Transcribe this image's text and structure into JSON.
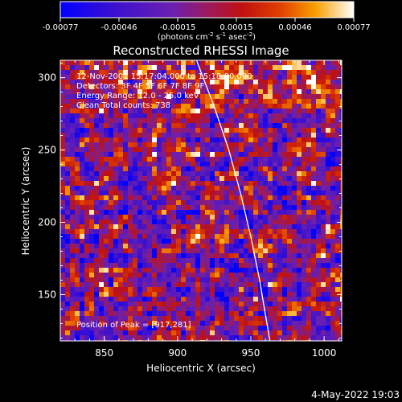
{
  "chart_data": {
    "type": "heatmap",
    "title": "Reconstructed RHESSI Image",
    "xlabel": "Heliocentric X (arcsec)",
    "ylabel": "Heliocentric Y (arcsec)",
    "xlim": [
      820,
      1012
    ],
    "ylim": [
      118,
      312
    ],
    "xticks": [
      "850",
      "900",
      "950",
      "1000"
    ],
    "yticks": [
      "150",
      "200",
      "250",
      "300"
    ],
    "colorbar": {
      "ticks": [
        "-0.00077",
        "-0.00046",
        "-0.00015",
        "0.00015",
        "0.00046",
        "0.00077"
      ],
      "units_main": "(photons cm",
      "units_exp1": "-2",
      "units_mid": " s",
      "units_exp2": "-1",
      "units_end": " asec",
      "units_exp3": "-2",
      "units_close": ")",
      "range": [
        -0.00077,
        0.00077
      ]
    },
    "annotations": {
      "time": "12-Nov-2001 15:17:04.000 to 15:18:00.000",
      "detectors": "Detectors: 3F 4F 5F 6F 7F 8F 9F",
      "energy": "Energy Range: 12.0 - 25.0 keV",
      "method": "Clean     Total counts: 738",
      "peak": "Position of Peak = [917,281]"
    },
    "limb_curve": [
      [
        913,
        312
      ],
      [
        925,
        280
      ],
      [
        935,
        250
      ],
      [
        943,
        220
      ],
      [
        950,
        190
      ],
      [
        956,
        160
      ],
      [
        961,
        130
      ],
      [
        963,
        118
      ]
    ]
  },
  "footer": {
    "timestamp": "4-May-2022 19:03"
  }
}
